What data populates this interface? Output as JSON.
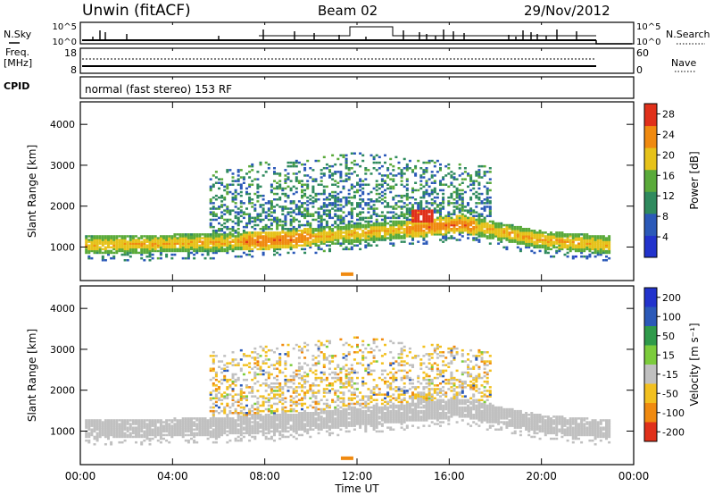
{
  "header": {
    "station": "Unwin (fitACF)",
    "beam": "Beam 02",
    "date": "29/Nov/2012"
  },
  "top_panels": {
    "nsky_label": "N.Sky",
    "nsearch_label": "N.Search",
    "freq_label_line1": "Freq.",
    "freq_label_line2": "[MHz]",
    "nave_label": "Nave",
    "cpid_label": "CPID",
    "cpid_text": "normal (fast stereo) 153 RF",
    "noise_ticks_left": [
      "10^5",
      "10^0"
    ],
    "noise_ticks_right": [
      "10^5",
      "10^0"
    ],
    "freq_ticks": [
      "18",
      "8"
    ],
    "nave_ticks": [
      "60",
      "0"
    ]
  },
  "chart_data": [
    {
      "type": "heatmap",
      "name": "power",
      "ylabel": "Slant Range [km]",
      "xlim": [
        0,
        24
      ],
      "ylim": [
        180,
        4550
      ],
      "yticks": [
        1000,
        2000,
        3000,
        4000
      ],
      "colorbar": {
        "label": "Power [dB]",
        "ticks": [
          4,
          8,
          12,
          16,
          20,
          24,
          28
        ],
        "range": [
          0,
          30
        ],
        "colors": [
          "#2233cc",
          "#2b59b8",
          "#2f8a5e",
          "#5aaa3a",
          "#e6c21a",
          "#f08a10",
          "#e0301a"
        ]
      },
      "features": [
        {
          "description": "main ground-scatter band",
          "time_start": 0.2,
          "time_end": 22.9,
          "range_start_km": 950,
          "range_peak_km": 1500,
          "range_end_km": 1050,
          "peak_power_db": 26
        },
        {
          "description": "diffuse scatter",
          "time_start": 5.5,
          "time_end": 17.8,
          "range_min_km": 1300,
          "range_max_km": 3300
        },
        {
          "description": "high power patch",
          "time": 14.8,
          "range_km": 1750,
          "power_db": 28
        }
      ]
    },
    {
      "type": "heatmap",
      "name": "velocity",
      "ylabel": "Slant Range [km]",
      "xlabel": "Time UT",
      "xlim": [
        0,
        24
      ],
      "ylim": [
        180,
        4550
      ],
      "xticks": [
        "00:00",
        "04:00",
        "08:00",
        "12:00",
        "16:00",
        "20:00",
        "00:00"
      ],
      "yticks": [
        1000,
        2000,
        3000,
        4000
      ],
      "colorbar": {
        "label": "Velocity [m s⁻¹]",
        "ticks": [
          200,
          100,
          50,
          15,
          -15,
          -50,
          -100,
          -200
        ],
        "colors": [
          "#2233cc",
          "#2b59b8",
          "#2f9a4a",
          "#7ccc3c",
          "#c0c0c0",
          "#f2c020",
          "#f08a10",
          "#e0301a"
        ]
      },
      "features": [
        {
          "description": "ground scatter (grey)",
          "time_start": 0.2,
          "time_end": 22.9,
          "range_min_km": 900,
          "range_max_km": 1700
        },
        {
          "description": "orange negative velocities",
          "time_start": 8.0,
          "time_end": 16.0,
          "range_min_km": 1700,
          "range_max_km": 3200,
          "velocity": -50
        }
      ]
    }
  ],
  "colors": {
    "frame": "#000000",
    "background": "#ffffff"
  }
}
